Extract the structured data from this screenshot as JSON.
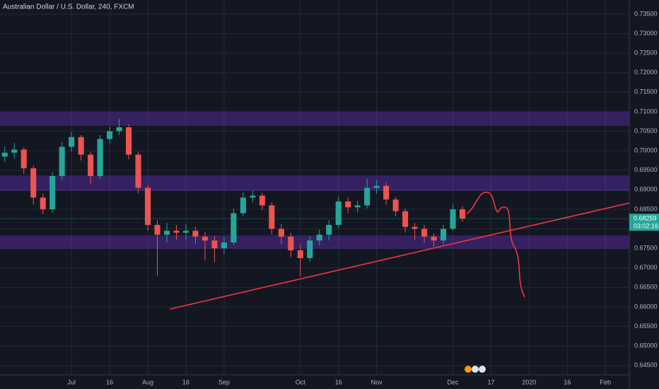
{
  "chart_data": {
    "type": "candlestick",
    "title": "Australian Dollar / U.S. Dollar, 240, FXCM",
    "categories": [
      null,
      null,
      null,
      null,
      null,
      null,
      null,
      "Jul",
      null,
      null,
      null,
      "16",
      null,
      null,
      null,
      "Aug",
      null,
      null,
      null,
      "16",
      null,
      null,
      null,
      "Sep",
      null,
      null,
      null,
      null,
      null,
      null,
      null,
      "Oct",
      null,
      null,
      null,
      "16",
      null,
      null,
      null,
      "Nov",
      null,
      null,
      null,
      null,
      null,
      null,
      null,
      "Dec",
      null,
      null,
      null,
      "17",
      null,
      null,
      null,
      "2020",
      null,
      null,
      null,
      "16",
      null,
      null,
      null,
      "Feb",
      null,
      null
    ],
    "open": [
      0.6985,
      0.6995,
      0.7003,
      0.6955,
      0.688,
      0.685,
      0.6935,
      0.701,
      0.7035,
      0.699,
      0.6935,
      0.703,
      0.705,
      0.706,
      0.699,
      0.6905,
      0.681,
      0.6785,
      0.6795,
      0.679,
      0.6795,
      0.678,
      0.677,
      0.675,
      0.6765,
      0.684,
      0.688,
      0.6885,
      0.686,
      0.68,
      0.678,
      0.6745,
      0.6725,
      0.677,
      0.6785,
      0.681,
      0.687,
      0.6855,
      0.686,
      0.6905,
      0.691,
      0.6875,
      0.6845,
      0.6805,
      0.68,
      0.678,
      0.677,
      0.68,
      0.685,
      null,
      null,
      null,
      null,
      null,
      null,
      null,
      null,
      null,
      null,
      null,
      null,
      null,
      null,
      null,
      null,
      null
    ],
    "high": [
      0.701,
      0.702,
      0.7008,
      0.6962,
      0.689,
      0.6945,
      0.7022,
      0.7048,
      0.704,
      0.6998,
      0.704,
      0.7062,
      0.7082,
      0.7068,
      0.6998,
      0.6912,
      0.6822,
      0.6815,
      0.681,
      0.6812,
      0.6805,
      0.6792,
      0.6782,
      0.6778,
      0.6852,
      0.6893,
      0.6898,
      0.6892,
      0.6868,
      0.6812,
      0.679,
      0.676,
      0.6782,
      0.6798,
      0.6822,
      0.6882,
      0.688,
      0.6872,
      0.6928,
      0.6925,
      0.6918,
      0.6882,
      0.6852,
      0.6815,
      0.681,
      0.6788,
      0.681,
      0.6862,
      0.6858,
      null,
      null,
      null,
      null,
      null,
      null,
      null,
      null,
      null,
      null,
      null,
      null,
      null,
      null,
      null,
      null,
      null
    ],
    "low": [
      0.6972,
      0.698,
      0.694,
      0.6862,
      0.6838,
      0.6842,
      0.6925,
      0.6998,
      0.6975,
      0.6915,
      0.6928,
      0.7018,
      0.704,
      0.6978,
      0.689,
      0.6795,
      0.668,
      0.6765,
      0.6772,
      0.677,
      0.6762,
      0.672,
      0.6715,
      0.6735,
      0.6758,
      0.6832,
      0.6868,
      0.6848,
      0.6785,
      0.6762,
      0.6728,
      0.6678,
      0.6715,
      0.6758,
      0.677,
      0.6802,
      0.684,
      0.6842,
      0.6852,
      0.689,
      0.6862,
      0.6832,
      0.679,
      0.6772,
      0.6765,
      0.6755,
      0.676,
      0.6795,
      0.6818,
      null,
      null,
      null,
      null,
      null,
      null,
      null,
      null,
      null,
      null,
      null,
      null,
      null,
      null,
      null,
      null,
      null
    ],
    "close": [
      0.6995,
      0.7003,
      0.6955,
      0.688,
      0.685,
      0.6935,
      0.701,
      0.7035,
      0.699,
      0.6935,
      0.703,
      0.705,
      0.706,
      0.699,
      0.6905,
      0.681,
      0.6785,
      0.6795,
      0.679,
      0.6795,
      0.678,
      0.677,
      0.675,
      0.6765,
      0.684,
      0.688,
      0.6885,
      0.686,
      0.68,
      0.678,
      0.6745,
      0.6725,
      0.677,
      0.6785,
      0.681,
      0.687,
      0.6855,
      0.686,
      0.6905,
      0.691,
      0.6875,
      0.6845,
      0.6805,
      0.68,
      0.678,
      0.677,
      0.68,
      0.685,
      0.6826,
      null,
      null,
      null,
      null,
      null,
      null,
      null,
      null,
      null,
      null,
      null,
      null,
      null,
      null,
      null,
      null,
      null
    ],
    "up_color": "#26a69a",
    "down_color": "#ef5350",
    "zones": [
      [
        0.7064,
        0.71
      ],
      [
        0.6897,
        0.6937
      ],
      [
        0.6749,
        0.6783
      ]
    ],
    "zone_color": "rgba(110,50,200,0.38)",
    "last_price": 0.68259,
    "countdown": "03:02:16",
    "ylim": [
      0.6426,
      0.7386
    ],
    "yticks": [
      {
        "value": 0.645,
        "label": "0.64500"
      },
      {
        "value": 0.65,
        "label": "0.65000"
      },
      {
        "value": 0.655,
        "label": "0.65500"
      },
      {
        "value": 0.66,
        "label": "0.66000"
      },
      {
        "value": 0.665,
        "label": "0.66500"
      },
      {
        "value": 0.67,
        "label": "0.67000"
      },
      {
        "value": 0.675,
        "label": "0.67500"
      },
      {
        "value": 0.68,
        "label": "0.68000"
      },
      {
        "value": 0.685,
        "label": "0.68500"
      },
      {
        "value": 0.69,
        "label": "0.69000"
      },
      {
        "value": 0.695,
        "label": "0.69500"
      },
      {
        "value": 0.7,
        "label": "0.70000"
      },
      {
        "value": 0.705,
        "label": "0.70500"
      },
      {
        "value": 0.71,
        "label": "0.71000"
      },
      {
        "value": 0.715,
        "label": "0.71500"
      },
      {
        "value": 0.72,
        "label": "0.72000"
      },
      {
        "value": 0.725,
        "label": "0.72500"
      },
      {
        "value": 0.73,
        "label": "0.73000"
      },
      {
        "value": 0.735,
        "label": "0.73500"
      }
    ],
    "grid": true
  }
}
